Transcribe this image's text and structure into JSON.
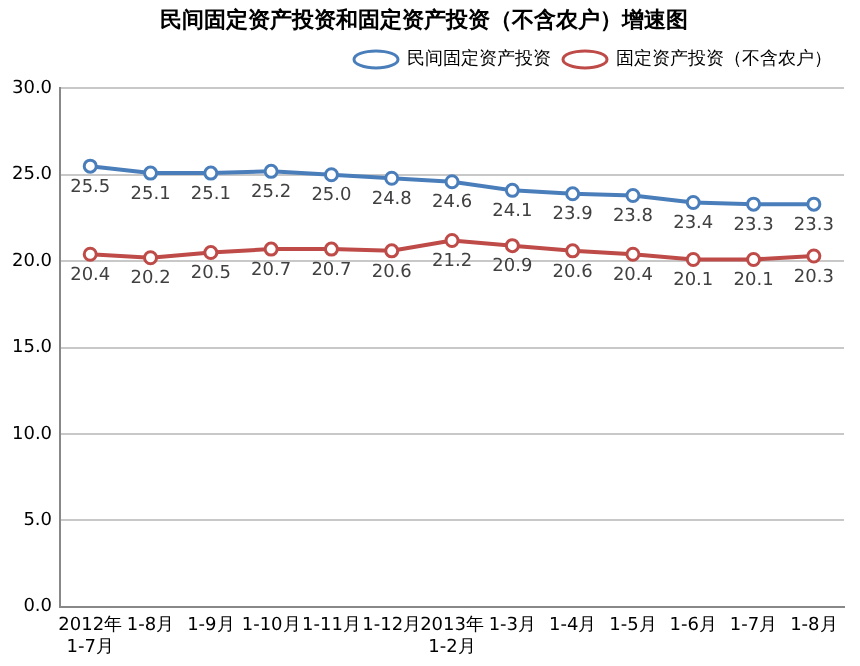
{
  "chart_data": {
    "type": "line",
    "title": "民间固定资产投资和固定资产投资（不含农户）增速图",
    "categories": [
      "2012年\n1-7月",
      "1-8月",
      "1-9月",
      "1-10月",
      "1-11月",
      "1-12月",
      "2013年\n1-2月",
      "1-3月",
      "1-4月",
      "1-5月",
      "1-6月",
      "1-7月",
      "1-8月"
    ],
    "series": [
      {
        "name": "民间固定资产投资",
        "color": "#4a7ebb",
        "values": [
          25.5,
          25.1,
          25.1,
          25.2,
          25.0,
          24.8,
          24.6,
          24.1,
          23.9,
          23.8,
          23.4,
          23.3,
          23.3
        ],
        "value_labels": [
          "25.5",
          "25.1",
          "25.1",
          "25.2",
          "25.0",
          "24.8",
          "24.6",
          "24.1",
          "23.9",
          "23.8",
          "23.4",
          "23.3",
          "23.3"
        ]
      },
      {
        "name": "固定资产投资（不含农户）",
        "color": "#be4b48",
        "values": [
          20.4,
          20.2,
          20.5,
          20.7,
          20.7,
          20.6,
          21.2,
          20.9,
          20.6,
          20.4,
          20.1,
          20.1,
          20.3
        ],
        "value_labels": [
          "20.4",
          "20.2",
          "20.5",
          "20.7",
          "20.7",
          "20.6",
          "21.2",
          "20.9",
          "20.6",
          "20.4",
          "20.1",
          "20.1",
          "20.3"
        ]
      }
    ],
    "ylim": [
      0,
      30
    ],
    "yticks": [
      {
        "value": 0,
        "label": "0.0"
      },
      {
        "value": 5,
        "label": "5.0"
      },
      {
        "value": 10,
        "label": "10.0"
      },
      {
        "value": 15,
        "label": "15.0"
      },
      {
        "value": 20,
        "label": "20.0"
      },
      {
        "value": 25,
        "label": "25.0"
      },
      {
        "value": 30,
        "label": "30.0"
      }
    ],
    "grid": "y",
    "legend": "top right",
    "marker": "circle",
    "line_style": "solid"
  }
}
